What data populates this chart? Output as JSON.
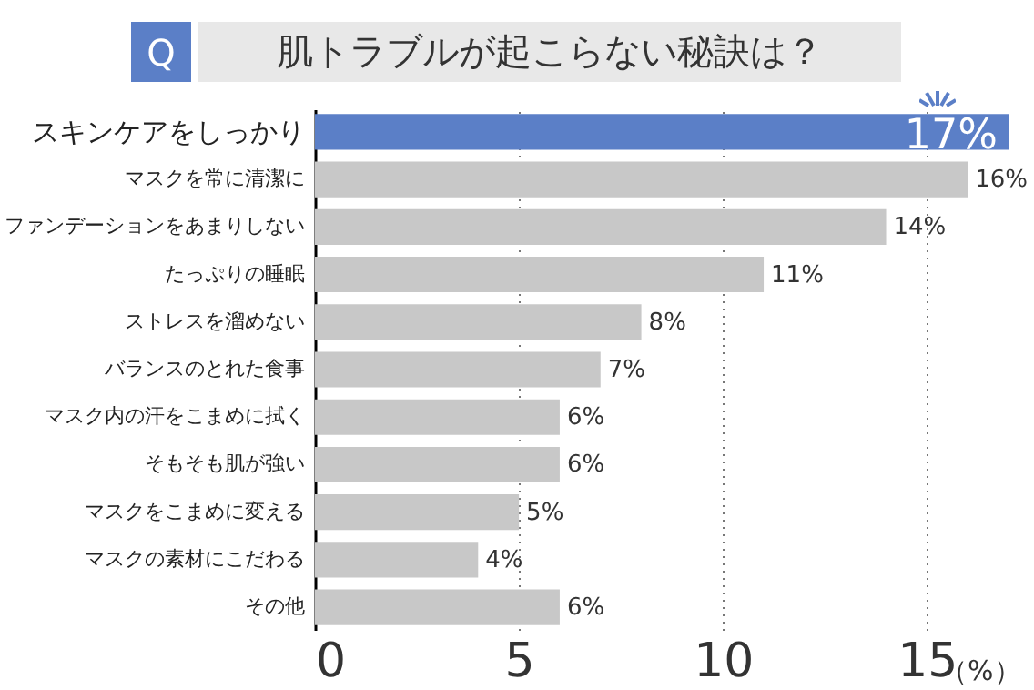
{
  "chart_data": {
    "type": "bar",
    "orientation": "horizontal",
    "title": "肌トラブルが起こらない秘訣は？",
    "annotations": [
      "Q"
    ],
    "xlabel": "（%）",
    "categories": [
      "スキンケアをしっかり",
      "マスクを常に清潔に",
      "ファンデーションをあまりしない",
      "たっぷりの睡眠",
      "ストレスを溜めない",
      "バランスのとれた食事",
      "マスク内の汗をこまめに拭く",
      "そもそも肌が強い",
      "マスクをこまめに変える",
      "マスクの素材にこだわる",
      "その他"
    ],
    "values": [
      17,
      16,
      14,
      11,
      8,
      7,
      6,
      6,
      5,
      4,
      6
    ],
    "value_labels": [
      "17%",
      "16%",
      "14%",
      "11%",
      "8%",
      "7%",
      "6%",
      "6%",
      "5%",
      "4%",
      "6%"
    ],
    "colors": [
      "#5b7fc7",
      "#c8c8c8",
      "#c8c8c8",
      "#c8c8c8",
      "#c8c8c8",
      "#c8c8c8",
      "#c8c8c8",
      "#c8c8c8",
      "#c8c8c8",
      "#c8c8c8",
      "#c8c8c8"
    ],
    "xlim": [
      0,
      17
    ],
    "xticks": [
      0,
      5,
      10,
      15
    ],
    "grid": "x"
  }
}
